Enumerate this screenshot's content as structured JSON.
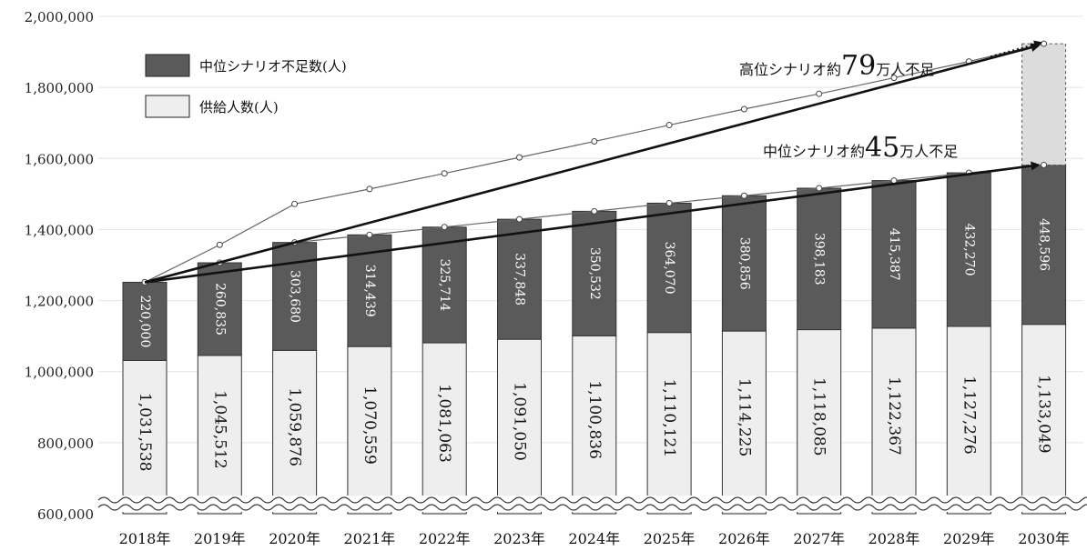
{
  "chart_data": {
    "type": "bar",
    "stacked": true,
    "categories": [
      "2018年",
      "2019年",
      "2020年",
      "2021年",
      "2022年",
      "2023年",
      "2024年",
      "2025年",
      "2026年",
      "2027年",
      "2028年",
      "2029年",
      "2030年"
    ],
    "series": [
      {
        "name": "供給人数(人)",
        "color": "#eeeeee",
        "values": [
          1031538,
          1045512,
          1059876,
          1070559,
          1081063,
          1091050,
          1100836,
          1110121,
          1114225,
          1118085,
          1122367,
          1127276,
          1133049
        ],
        "labels": [
          "1,031,538",
          "1,045,512",
          "1,059,876",
          "1,070,559",
          "1,081,063",
          "1,091,050",
          "1,100,836",
          "1,110,121",
          "1,114,225",
          "1,118,085",
          "1,122,367",
          "1,127,276",
          "1,133,049"
        ]
      },
      {
        "name": "中位シナリオ不足数(人)",
        "color": "#5a5a5a",
        "values": [
          220000,
          260835,
          303680,
          314439,
          325714,
          337848,
          350532,
          364070,
          380856,
          398183,
          415387,
          432270,
          448596
        ],
        "labels": [
          "220,000",
          "260,835",
          "303,680",
          "314,439",
          "325,714",
          "337,848",
          "350,532",
          "364,070",
          "380,856",
          "398,183",
          "415,387",
          "432,270",
          "448,596"
        ]
      }
    ],
    "high_scenario_line": {
      "values": [
        1251538,
        1357000,
        1472000,
        1514000,
        1558000,
        1603000,
        1648000,
        1694000,
        1739000,
        1782000,
        1827000,
        1873000,
        1923000
      ]
    },
    "y_axis": {
      "ylim": [
        600000,
        2000000
      ],
      "ticks": [
        600000,
        800000,
        1000000,
        1200000,
        1400000,
        1600000,
        1800000,
        2000000
      ],
      "tick_labels": [
        "600,000",
        "800,000",
        "1,000,000",
        "1,200,000",
        "1,400,000",
        "1,600,000",
        "1,800,000",
        "2,000,000"
      ],
      "broken": true
    },
    "annotations": {
      "high": {
        "prefix": "高位シナリオ約",
        "number": "79",
        "suffix": "万人不足"
      },
      "mid": {
        "prefix": "中位シナリオ約",
        "number": "45",
        "suffix": "万人不足"
      }
    },
    "legend_position": "top-left",
    "grid": true
  }
}
